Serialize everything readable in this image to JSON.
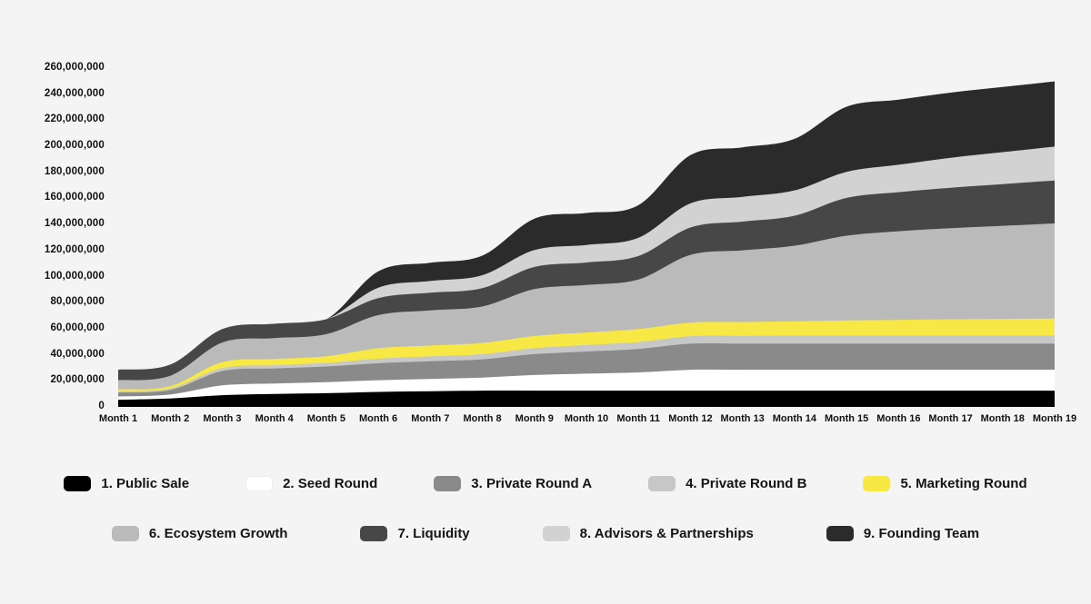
{
  "page": {
    "background_color": "#f4f4f4",
    "text_color": "#111111"
  },
  "chart_data": {
    "type": "area",
    "stacked": true,
    "smooth": true,
    "grid": false,
    "legend_position": "bottom",
    "xlabel": "",
    "ylabel": "",
    "ylim": [
      0,
      260000000
    ],
    "x_categories": [
      "Month 1",
      "Month 2",
      "Month 3",
      "Month 4",
      "Month 5",
      "Month 6",
      "Month 7",
      "Month 8",
      "Month 9",
      "Month 10",
      "Month 11",
      "Month 12",
      "Month 13",
      "Month 14",
      "Month 15",
      "Month 16",
      "Month 17",
      "Month 18",
      "Month 19"
    ],
    "y_ticks": [
      {
        "value": 0,
        "label": "0"
      },
      {
        "value": 20000000,
        "label": "20,000,000"
      },
      {
        "value": 40000000,
        "label": "40,000,000"
      },
      {
        "value": 60000000,
        "label": "60,000,000"
      },
      {
        "value": 80000000,
        "label": "80,000,000"
      },
      {
        "value": 100000000,
        "label": "100,000,000"
      },
      {
        "value": 120000000,
        "label": "120,000,000"
      },
      {
        "value": 140000000,
        "label": "140,000,000"
      },
      {
        "value": 160000000,
        "label": "160,000,000"
      },
      {
        "value": 180000000,
        "label": "180,000,000"
      },
      {
        "value": 200000000,
        "label": "200,000,000"
      },
      {
        "value": 220000000,
        "label": "220,000,000"
      },
      {
        "value": 240000000,
        "label": "240,000,000"
      },
      {
        "value": 260000000,
        "label": "260,000,000"
      }
    ],
    "series": [
      {
        "name": "public-sale",
        "legend_label": "1. Public Sale",
        "color": "#000000",
        "values": [
          5500000,
          6500000,
          9000000,
          10000000,
          10500000,
          11500000,
          12000000,
          12500000,
          12500000,
          12500000,
          12500000,
          12500000,
          12500000,
          12500000,
          12500000,
          12500000,
          12500000,
          12500000,
          12500000
        ]
      },
      {
        "name": "seed-round",
        "legend_label": "2. Seed Round",
        "color": "#ffffff",
        "values": [
          2500000,
          3000000,
          7500000,
          8000000,
          8500000,
          9000000,
          9500000,
          10000000,
          12000000,
          13000000,
          14000000,
          16000000,
          16000000,
          16000000,
          16000000,
          16000000,
          16000000,
          16000000,
          16000000
        ]
      },
      {
        "name": "private-round-a",
        "legend_label": "3. Private Round A",
        "color": "#8a8a8a",
        "values": [
          3000000,
          3500000,
          11000000,
          11500000,
          12000000,
          13000000,
          13500000,
          14000000,
          16000000,
          17000000,
          18000000,
          20000000,
          20000000,
          20000000,
          20000000,
          20000000,
          20000000,
          20000000,
          20000000
        ]
      },
      {
        "name": "private-round-b",
        "legend_label": "4. Private Round B",
        "color": "#c7c7c7",
        "values": [
          1000000,
          1200000,
          2300000,
          2500000,
          2800000,
          3500000,
          3800000,
          4000000,
          4600000,
          5000000,
          5300000,
          5800000,
          6000000,
          6200000,
          6300000,
          6300000,
          6300000,
          6300000,
          6300000
        ]
      },
      {
        "name": "marketing-round",
        "legend_label": "5. Marketing Round",
        "color": "#f8e846",
        "values": [
          1500000,
          1700000,
          4600000,
          4800000,
          5000000,
          8000000,
          8300000,
          8600000,
          9300000,
          9600000,
          10000000,
          10400000,
          10700000,
          11000000,
          11600000,
          12000000,
          12400000,
          12700000,
          13000000
        ]
      },
      {
        "name": "ecosystem-growth",
        "legend_label": "6. Ecosystem Growth",
        "color": "#bababa",
        "values": [
          7000000,
          8000000,
          15000000,
          16000000,
          17000000,
          25500000,
          27000000,
          28000000,
          36000000,
          36500000,
          38000000,
          52000000,
          55000000,
          58000000,
          65000000,
          68000000,
          70000000,
          71500000,
          73000000
        ]
      },
      {
        "name": "liquidity",
        "legend_label": "7. Liquidity",
        "color": "#474747",
        "values": [
          8000000,
          8500000,
          10300000,
          11000000,
          11500000,
          13000000,
          13500000,
          14000000,
          17000000,
          17200000,
          18000000,
          21000000,
          22000000,
          23000000,
          29000000,
          30000000,
          31000000,
          32000000,
          33000000
        ]
      },
      {
        "name": "advisors-partnerships",
        "legend_label": "8. Advisors & Partnerships",
        "color": "#d2d2d2",
        "values": [
          0,
          0,
          0,
          0,
          0,
          8000000,
          9000000,
          10000000,
          13000000,
          13500000,
          14000000,
          18500000,
          19000000,
          19500000,
          20000000,
          21000000,
          23000000,
          24500000,
          26000000
        ]
      },
      {
        "name": "founding-team",
        "legend_label": "9. Founding Team",
        "color": "#2b2b2b",
        "values": [
          0,
          0,
          0,
          0,
          0,
          12500000,
          14000000,
          15000000,
          24000000,
          24500000,
          25000000,
          37000000,
          38000000,
          39500000,
          50000000,
          50000000,
          50000000,
          50000000,
          50000000
        ]
      }
    ]
  }
}
